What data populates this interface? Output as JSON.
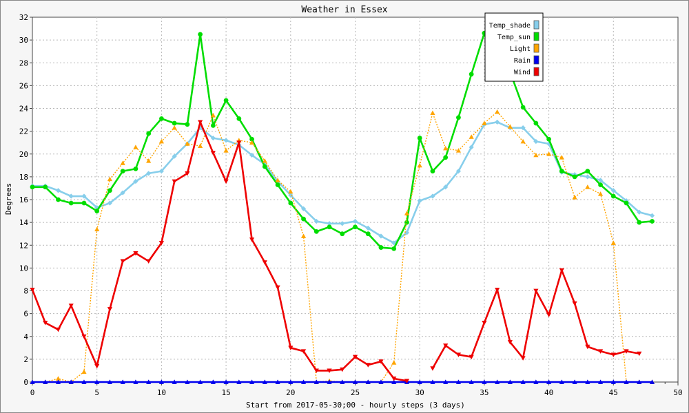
{
  "chart_data": {
    "type": "line",
    "title": "Weather in Essex",
    "xlabel": "Start from 2017-05-30;00 - hourly steps (3 days)",
    "ylabel": "Degrees",
    "xlim": [
      0,
      50
    ],
    "ylim": [
      0,
      32
    ],
    "xticks": [
      0,
      5,
      10,
      15,
      20,
      25,
      30,
      35,
      40,
      45,
      50
    ],
    "yticks": [
      0,
      2,
      4,
      6,
      8,
      10,
      12,
      14,
      16,
      18,
      20,
      22,
      24,
      26,
      28,
      30,
      32
    ],
    "grid": true,
    "legend_position": "top-right",
    "series": [
      {
        "name": "Temp_shade",
        "color": "#87ceeb",
        "marker": "diamond",
        "line": "solid",
        "values": [
          17.2,
          17.2,
          16.8,
          16.3,
          16.3,
          15.3,
          15.7,
          16.6,
          17.6,
          18.3,
          18.5,
          19.8,
          20.9,
          22.3,
          21.4,
          21.2,
          20.8,
          19.9,
          19.1,
          17.6,
          16.4,
          15.2,
          14.1,
          13.9,
          13.9,
          14.1,
          13.5,
          12.8,
          12.2,
          13.1,
          15.9,
          16.3,
          17.1,
          18.5,
          20.6,
          22.6,
          22.8,
          22.3,
          22.3,
          21.1,
          20.9,
          18.4,
          18.2,
          18.0,
          17.7,
          16.8,
          15.9,
          14.9,
          14.6
        ]
      },
      {
        "name": "Temp_sun",
        "color": "#00dd00",
        "marker": "circle",
        "line": "solid",
        "values": [
          17.1,
          17.1,
          16.0,
          15.7,
          15.7,
          15.0,
          16.8,
          18.5,
          18.7,
          21.8,
          23.1,
          22.7,
          22.6,
          30.5,
          22.5,
          24.7,
          23.1,
          21.3,
          18.9,
          17.3,
          15.7,
          14.3,
          13.2,
          13.6,
          13.0,
          13.6,
          13.0,
          11.8,
          11.7,
          14.0,
          21.4,
          18.5,
          19.7,
          23.2,
          27.0,
          30.6,
          27.3,
          27.2,
          24.1,
          22.7,
          21.3,
          18.5,
          18.0,
          18.5,
          17.3,
          16.3,
          15.7,
          14.0,
          14.1
        ]
      },
      {
        "name": "Light",
        "color": "#ffa500",
        "marker": "triangle-up",
        "line": "dotted",
        "values": [
          0.0,
          0.0,
          0.3,
          0.0,
          0.9,
          13.4,
          17.8,
          19.2,
          20.6,
          19.4,
          21.1,
          22.3,
          20.9,
          20.7,
          23.4,
          20.3,
          21.2,
          21.0,
          19.4,
          17.7,
          16.7,
          12.8,
          0.0,
          0.1,
          0.0,
          0.0,
          0.0,
          0.0,
          1.7,
          14.8,
          19.0,
          23.6,
          20.5,
          20.3,
          21.5,
          22.7,
          23.7,
          22.4,
          21.1,
          19.9,
          20.0,
          19.7,
          16.2,
          17.1,
          16.5,
          12.2,
          0.0,
          0.0,
          0.0
        ]
      },
      {
        "name": "Rain",
        "color": "#0000ee",
        "marker": "triangle-up",
        "line": "solid",
        "values": [
          0,
          0,
          0,
          0,
          0,
          0,
          0,
          0,
          0,
          0,
          0,
          0,
          0,
          0,
          0,
          0,
          0,
          0,
          0,
          0,
          0,
          0,
          0,
          0,
          0,
          0,
          0,
          0,
          0,
          0,
          0,
          0,
          0,
          0,
          0,
          0,
          0,
          0,
          0,
          0,
          0,
          0,
          0,
          0,
          0,
          0,
          0,
          0,
          0
        ]
      },
      {
        "name": "Wind",
        "color": "#ee0000",
        "marker": "triangle-down",
        "line": "solid",
        "values": [
          8.1,
          5.2,
          4.6,
          6.7,
          4.0,
          1.4,
          6.4,
          10.6,
          11.3,
          10.6,
          12.2,
          17.6,
          18.3,
          22.8,
          20.1,
          17.6,
          21.0,
          12.5,
          10.5,
          8.3,
          3.0,
          2.7,
          1.0,
          1.0,
          1.1,
          2.2,
          1.5,
          1.8,
          0.3,
          0.1,
          null,
          1.2,
          3.2,
          2.4,
          2.2,
          5.2,
          8.1,
          3.5,
          2.1,
          8.0,
          5.9,
          9.8,
          6.9,
          3.1,
          2.7,
          2.4,
          2.7,
          2.5,
          null
        ]
      }
    ]
  }
}
